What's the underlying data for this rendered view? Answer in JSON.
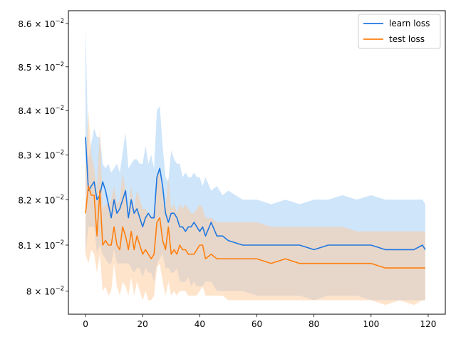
{
  "chart_data": {
    "type": "line",
    "title": "",
    "xlabel": "",
    "ylabel": "",
    "xlim": [
      -6,
      126
    ],
    "ylim": [
      0.0795,
      0.0863
    ],
    "yscale": "log",
    "grid": false,
    "legend_position": "top-right",
    "x_ticks": [
      0,
      20,
      40,
      60,
      80,
      100,
      120
    ],
    "x_tick_labels": [
      "0",
      "20",
      "40",
      "60",
      "80",
      "100",
      "120"
    ],
    "y_ticks": [
      0.08,
      0.081,
      0.082,
      0.083,
      0.084,
      0.085,
      0.086
    ],
    "y_tick_labels": [
      "8 × 10",
      "8.1 × 10",
      "8.2 × 10",
      "8.3 × 10",
      "8.4 × 10",
      "8.5 × 10",
      "8.6 × 10"
    ],
    "y_tick_exponent": "−2",
    "series": [
      {
        "name": "learn loss",
        "color": "#1f77e0",
        "band_color": "#9ecbf5",
        "x": [
          0,
          1,
          3,
          4,
          5,
          6,
          7,
          8,
          9,
          10,
          11,
          12,
          14,
          15,
          16,
          17,
          18,
          19,
          20,
          21,
          22,
          23,
          24,
          25,
          26,
          27,
          28,
          29,
          30,
          31,
          32,
          33,
          34,
          35,
          36,
          37,
          38,
          39,
          40,
          41,
          42,
          44,
          46,
          48,
          50,
          55,
          60,
          65,
          70,
          75,
          80,
          85,
          90,
          95,
          100,
          105,
          110,
          115,
          118,
          119
        ],
        "values": [
          0.0834,
          0.0822,
          0.0824,
          0.082,
          0.0821,
          0.0824,
          0.0822,
          0.0819,
          0.0816,
          0.082,
          0.0817,
          0.0818,
          0.0822,
          0.0816,
          0.082,
          0.0817,
          0.0818,
          0.0816,
          0.0814,
          0.0816,
          0.0817,
          0.0816,
          0.0816,
          0.0825,
          0.0827,
          0.0823,
          0.0817,
          0.0815,
          0.0817,
          0.0817,
          0.0816,
          0.0814,
          0.0814,
          0.0813,
          0.0814,
          0.0814,
          0.0815,
          0.0814,
          0.0813,
          0.0814,
          0.0812,
          0.0815,
          0.0812,
          0.0812,
          0.0811,
          0.081,
          0.081,
          0.081,
          0.081,
          0.081,
          0.0809,
          0.081,
          0.081,
          0.081,
          0.081,
          0.0809,
          0.0809,
          0.0809,
          0.081,
          0.0809
        ],
        "upper": [
          0.086,
          0.0829,
          0.0836,
          0.0834,
          0.0834,
          0.0828,
          0.0827,
          0.0828,
          0.0826,
          0.0827,
          0.0828,
          0.0826,
          0.0835,
          0.0827,
          0.0828,
          0.0829,
          0.0829,
          0.0828,
          0.0828,
          0.0832,
          0.0828,
          0.083,
          0.0827,
          0.084,
          0.0841,
          0.0832,
          0.0825,
          0.0824,
          0.0831,
          0.0829,
          0.0828,
          0.0828,
          0.0825,
          0.0826,
          0.0825,
          0.0825,
          0.0826,
          0.0825,
          0.0825,
          0.0823,
          0.0825,
          0.0822,
          0.0823,
          0.0821,
          0.0822,
          0.082,
          0.082,
          0.0819,
          0.082,
          0.0819,
          0.082,
          0.082,
          0.0821,
          0.082,
          0.0821,
          0.082,
          0.082,
          0.082,
          0.082,
          0.0819
        ],
        "lower": [
          0.0808,
          0.0814,
          0.0814,
          0.0808,
          0.081,
          0.0808,
          0.0807,
          0.0806,
          0.0806,
          0.0809,
          0.0806,
          0.0806,
          0.0806,
          0.0806,
          0.0805,
          0.0804,
          0.0805,
          0.0805,
          0.0803,
          0.0805,
          0.0804,
          0.0804,
          0.0802,
          0.0806,
          0.0807,
          0.0808,
          0.0805,
          0.0805,
          0.0804,
          0.0804,
          0.0805,
          0.0802,
          0.0802,
          0.0802,
          0.0803,
          0.0801,
          0.0802,
          0.0801,
          0.0801,
          0.0801,
          0.0802,
          0.0802,
          0.08,
          0.08,
          0.08,
          0.08,
          0.0799,
          0.0799,
          0.0799,
          0.0799,
          0.0798,
          0.0799,
          0.0799,
          0.0799,
          0.0798,
          0.0798,
          0.0798,
          0.0798,
          0.0798,
          0.0798
        ]
      },
      {
        "name": "test loss",
        "color": "#ff7f0e",
        "band_color": "#ffc99a",
        "x": [
          0,
          1,
          2,
          3,
          4,
          5,
          6,
          7,
          8,
          9,
          10,
          11,
          12,
          13,
          14,
          15,
          16,
          17,
          18,
          19,
          20,
          21,
          22,
          23,
          24,
          25,
          26,
          27,
          28,
          29,
          30,
          31,
          32,
          33,
          34,
          35,
          36,
          37,
          38,
          39,
          40,
          41,
          42,
          44,
          46,
          48,
          50,
          55,
          60,
          65,
          70,
          75,
          80,
          85,
          90,
          95,
          100,
          105,
          110,
          115,
          118,
          119
        ],
        "values": [
          0.0817,
          0.0823,
          0.0821,
          0.0821,
          0.0812,
          0.0822,
          0.081,
          0.0811,
          0.081,
          0.081,
          0.0814,
          0.081,
          0.0809,
          0.0814,
          0.0812,
          0.0809,
          0.0813,
          0.0809,
          0.0812,
          0.081,
          0.0808,
          0.0809,
          0.0808,
          0.0807,
          0.0808,
          0.0815,
          0.0816,
          0.0811,
          0.0809,
          0.0814,
          0.0808,
          0.0809,
          0.0808,
          0.081,
          0.0809,
          0.0809,
          0.0808,
          0.0808,
          0.0808,
          0.0809,
          0.081,
          0.081,
          0.0807,
          0.0808,
          0.0807,
          0.0807,
          0.0807,
          0.0807,
          0.0807,
          0.0806,
          0.0807,
          0.0806,
          0.0806,
          0.0806,
          0.0806,
          0.0806,
          0.0806,
          0.0805,
          0.0805,
          0.0805,
          0.0805,
          0.0805
        ],
        "upper": [
          0.0826,
          0.084,
          0.083,
          0.0827,
          0.0822,
          0.0836,
          0.0818,
          0.0819,
          0.0819,
          0.082,
          0.0823,
          0.0819,
          0.082,
          0.0826,
          0.0822,
          0.0818,
          0.0823,
          0.0818,
          0.0822,
          0.082,
          0.0818,
          0.0818,
          0.0817,
          0.0816,
          0.0817,
          0.0825,
          0.0826,
          0.0821,
          0.0818,
          0.0825,
          0.0818,
          0.0819,
          0.0817,
          0.0819,
          0.0818,
          0.0819,
          0.0818,
          0.0817,
          0.0817,
          0.0818,
          0.0819,
          0.0818,
          0.0816,
          0.0816,
          0.0815,
          0.0815,
          0.0815,
          0.0815,
          0.0815,
          0.0814,
          0.0814,
          0.0814,
          0.0814,
          0.0814,
          0.0814,
          0.0813,
          0.0813,
          0.0813,
          0.0813,
          0.0813,
          0.0813,
          0.0813
        ],
        "lower": [
          0.0808,
          0.0806,
          0.0809,
          0.0808,
          0.0804,
          0.0808,
          0.08,
          0.0801,
          0.0799,
          0.08,
          0.0806,
          0.0801,
          0.0799,
          0.0802,
          0.0801,
          0.0799,
          0.0803,
          0.0799,
          0.0802,
          0.08,
          0.0798,
          0.08,
          0.0798,
          0.0798,
          0.0799,
          0.0805,
          0.0806,
          0.0802,
          0.0799,
          0.0802,
          0.0799,
          0.08,
          0.0799,
          0.08,
          0.08,
          0.08,
          0.0799,
          0.0799,
          0.0799,
          0.0799,
          0.08,
          0.0801,
          0.0799,
          0.0799,
          0.0799,
          0.0799,
          0.0798,
          0.0798,
          0.0798,
          0.0798,
          0.0798,
          0.0798,
          0.0798,
          0.0798,
          0.0798,
          0.0798,
          0.0798,
          0.0797,
          0.0798,
          0.0797,
          0.0798,
          0.0798
        ]
      }
    ]
  }
}
